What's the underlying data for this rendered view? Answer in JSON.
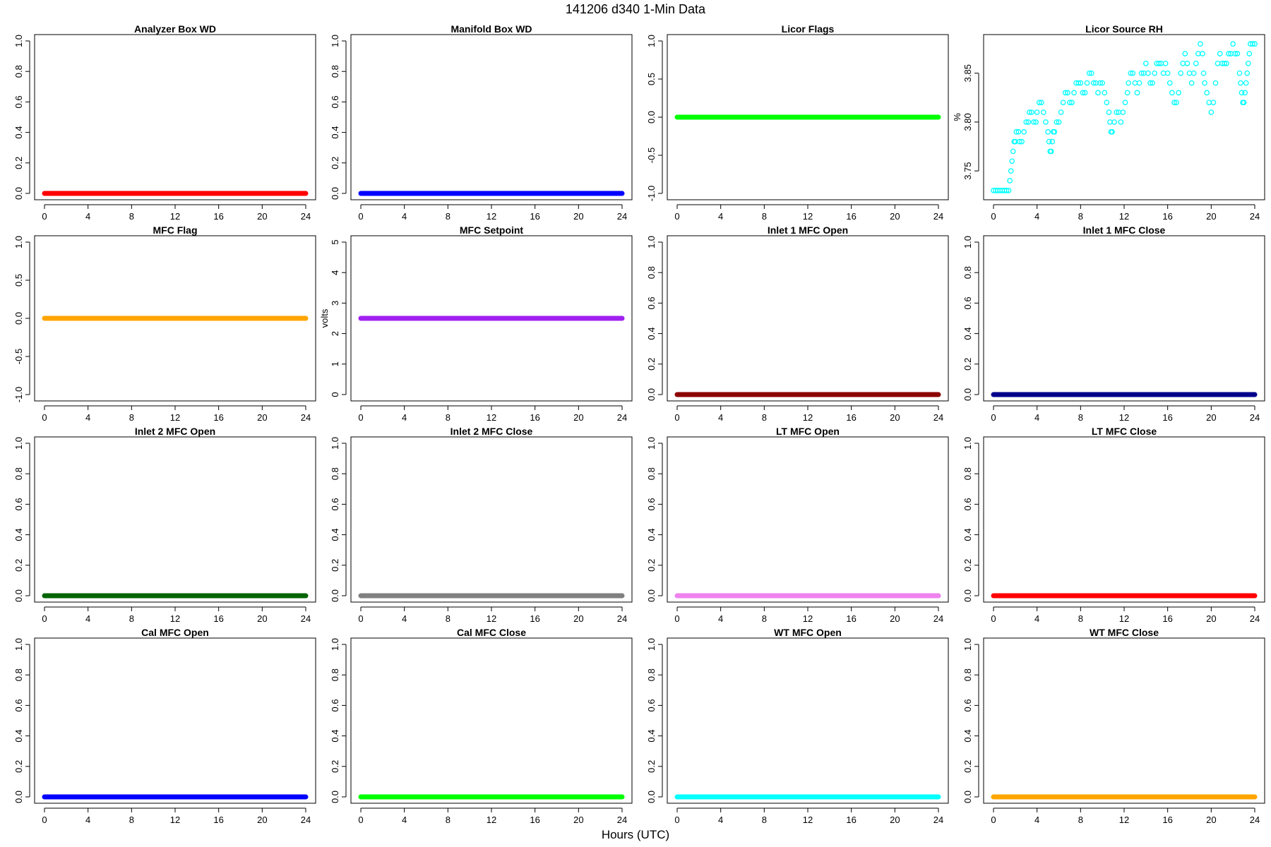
{
  "figure": {
    "title": "141206   d340   1-Min Data",
    "xlabel": "Hours (UTC)"
  },
  "chart_data": [
    {
      "type": "scatter",
      "title": "Analyzer Box WD",
      "ylabel": "",
      "color": "#ff0000",
      "xlim": [
        0,
        24
      ],
      "xticks": [
        0,
        4,
        8,
        12,
        16,
        20,
        24
      ],
      "ylim": [
        0,
        1
      ],
      "yticks": [
        "0.0",
        "0.2",
        "0.4",
        "0.6",
        "0.8",
        "1.0"
      ],
      "constant_value": 0,
      "x": [
        0,
        24
      ]
    },
    {
      "type": "scatter",
      "title": "Manifold Box WD",
      "ylabel": "",
      "color": "#0000ff",
      "xlim": [
        0,
        24
      ],
      "xticks": [
        0,
        4,
        8,
        12,
        16,
        20,
        24
      ],
      "ylim": [
        0,
        1
      ],
      "yticks": [
        "0.0",
        "0.2",
        "0.4",
        "0.6",
        "0.8",
        "1.0"
      ],
      "constant_value": 0,
      "x": [
        0,
        24
      ]
    },
    {
      "type": "scatter",
      "title": "Licor Flags",
      "ylabel": "",
      "color": "#00ff00",
      "xlim": [
        0,
        24
      ],
      "xticks": [
        0,
        4,
        8,
        12,
        16,
        20,
        24
      ],
      "ylim": [
        -1,
        1
      ],
      "yticks": [
        "-1.0",
        "-0.5",
        "0.0",
        "0.5",
        "1.0"
      ],
      "constant_value": 0,
      "x": [
        0,
        24
      ]
    },
    {
      "type": "scatter",
      "title": "Licor Source RH",
      "ylabel": "%",
      "color": "#00ffff",
      "xlim": [
        0,
        24
      ],
      "xticks": [
        0,
        4,
        8,
        12,
        16,
        20,
        24
      ],
      "ylim": [
        3.727,
        3.883
      ],
      "yticks": [
        "3.75",
        "3.80",
        "3.85"
      ],
      "hollow": true,
      "points": [
        [
          0.0,
          3.73
        ],
        [
          0.2,
          3.73
        ],
        [
          0.4,
          3.73
        ],
        [
          0.6,
          3.73
        ],
        [
          0.8,
          3.73
        ],
        [
          1.0,
          3.73
        ],
        [
          1.2,
          3.73
        ],
        [
          1.4,
          3.73
        ],
        [
          1.5,
          3.74
        ],
        [
          1.6,
          3.75
        ],
        [
          1.7,
          3.76
        ],
        [
          1.8,
          3.77
        ],
        [
          1.9,
          3.78
        ],
        [
          2.0,
          3.78
        ],
        [
          2.1,
          3.79
        ],
        [
          2.3,
          3.79
        ],
        [
          2.4,
          3.78
        ],
        [
          2.6,
          3.78
        ],
        [
          2.8,
          3.79
        ],
        [
          3.0,
          3.8
        ],
        [
          3.2,
          3.8
        ],
        [
          3.3,
          3.81
        ],
        [
          3.5,
          3.81
        ],
        [
          3.7,
          3.8
        ],
        [
          3.9,
          3.8
        ],
        [
          4.0,
          3.81
        ],
        [
          4.2,
          3.82
        ],
        [
          4.4,
          3.82
        ],
        [
          4.6,
          3.81
        ],
        [
          4.8,
          3.8
        ],
        [
          5.0,
          3.79
        ],
        [
          5.1,
          3.78
        ],
        [
          5.2,
          3.77
        ],
        [
          5.3,
          3.77
        ],
        [
          5.4,
          3.78
        ],
        [
          5.5,
          3.79
        ],
        [
          5.6,
          3.79
        ],
        [
          5.8,
          3.8
        ],
        [
          6.0,
          3.8
        ],
        [
          6.2,
          3.81
        ],
        [
          6.4,
          3.82
        ],
        [
          6.6,
          3.83
        ],
        [
          6.8,
          3.83
        ],
        [
          7.0,
          3.82
        ],
        [
          7.2,
          3.82
        ],
        [
          7.4,
          3.83
        ],
        [
          7.6,
          3.84
        ],
        [
          7.8,
          3.84
        ],
        [
          8.0,
          3.84
        ],
        [
          8.2,
          3.83
        ],
        [
          8.4,
          3.83
        ],
        [
          8.6,
          3.84
        ],
        [
          8.8,
          3.85
        ],
        [
          9.0,
          3.85
        ],
        [
          9.2,
          3.84
        ],
        [
          9.4,
          3.84
        ],
        [
          9.6,
          3.83
        ],
        [
          9.8,
          3.84
        ],
        [
          10.0,
          3.84
        ],
        [
          10.2,
          3.83
        ],
        [
          10.4,
          3.82
        ],
        [
          10.6,
          3.81
        ],
        [
          10.7,
          3.8
        ],
        [
          10.8,
          3.79
        ],
        [
          10.9,
          3.79
        ],
        [
          11.1,
          3.8
        ],
        [
          11.3,
          3.81
        ],
        [
          11.5,
          3.81
        ],
        [
          11.7,
          3.8
        ],
        [
          11.9,
          3.81
        ],
        [
          12.1,
          3.82
        ],
        [
          12.3,
          3.83
        ],
        [
          12.4,
          3.84
        ],
        [
          12.6,
          3.85
        ],
        [
          12.8,
          3.85
        ],
        [
          13.0,
          3.84
        ],
        [
          13.2,
          3.83
        ],
        [
          13.4,
          3.84
        ],
        [
          13.6,
          3.85
        ],
        [
          13.8,
          3.85
        ],
        [
          14.0,
          3.86
        ],
        [
          14.2,
          3.85
        ],
        [
          14.4,
          3.84
        ],
        [
          14.6,
          3.84
        ],
        [
          14.8,
          3.85
        ],
        [
          15.0,
          3.86
        ],
        [
          15.2,
          3.86
        ],
        [
          15.4,
          3.86
        ],
        [
          15.6,
          3.85
        ],
        [
          15.8,
          3.86
        ],
        [
          16.0,
          3.85
        ],
        [
          16.2,
          3.84
        ],
        [
          16.4,
          3.83
        ],
        [
          16.6,
          3.82
        ],
        [
          16.8,
          3.82
        ],
        [
          17.0,
          3.83
        ],
        [
          17.2,
          3.85
        ],
        [
          17.4,
          3.86
        ],
        [
          17.6,
          3.87
        ],
        [
          17.8,
          3.86
        ],
        [
          18.0,
          3.85
        ],
        [
          18.2,
          3.84
        ],
        [
          18.4,
          3.85
        ],
        [
          18.6,
          3.86
        ],
        [
          18.8,
          3.87
        ],
        [
          19.0,
          3.88
        ],
        [
          19.2,
          3.87
        ],
        [
          19.3,
          3.85
        ],
        [
          19.4,
          3.84
        ],
        [
          19.6,
          3.83
        ],
        [
          19.8,
          3.82
        ],
        [
          20.0,
          3.81
        ],
        [
          20.2,
          3.82
        ],
        [
          20.4,
          3.84
        ],
        [
          20.6,
          3.86
        ],
        [
          20.8,
          3.87
        ],
        [
          21.0,
          3.86
        ],
        [
          21.2,
          3.86
        ],
        [
          21.4,
          3.86
        ],
        [
          21.6,
          3.87
        ],
        [
          21.8,
          3.87
        ],
        [
          22.0,
          3.88
        ],
        [
          22.2,
          3.87
        ],
        [
          22.4,
          3.87
        ],
        [
          22.6,
          3.85
        ],
        [
          22.7,
          3.84
        ],
        [
          22.8,
          3.83
        ],
        [
          22.9,
          3.82
        ],
        [
          23.0,
          3.82
        ],
        [
          23.1,
          3.83
        ],
        [
          23.2,
          3.84
        ],
        [
          23.3,
          3.85
        ],
        [
          23.4,
          3.86
        ],
        [
          23.5,
          3.87
        ],
        [
          23.6,
          3.88
        ],
        [
          23.8,
          3.88
        ],
        [
          24.0,
          3.88
        ]
      ]
    },
    {
      "type": "scatter",
      "title": "MFC Flag",
      "ylabel": "",
      "color": "#ffa500",
      "xlim": [
        0,
        24
      ],
      "xticks": [
        0,
        4,
        8,
        12,
        16,
        20,
        24
      ],
      "ylim": [
        -1,
        1
      ],
      "yticks": [
        "-1.0",
        "-0.5",
        "0.0",
        "0.5",
        "1.0"
      ],
      "constant_value": 0,
      "x": [
        0,
        24
      ]
    },
    {
      "type": "scatter",
      "title": "MFC Setpoint",
      "ylabel": "volts",
      "color": "#a020f0",
      "xlim": [
        0,
        24
      ],
      "xticks": [
        0,
        4,
        8,
        12,
        16,
        20,
        24
      ],
      "ylim": [
        0,
        5
      ],
      "yticks": [
        "0",
        "1",
        "2",
        "3",
        "4",
        "5"
      ],
      "constant_value": 2.5,
      "x": [
        0,
        24
      ]
    },
    {
      "type": "scatter",
      "title": "Inlet 1 MFC Open",
      "ylabel": "",
      "color": "#8b0000",
      "xlim": [
        0,
        24
      ],
      "xticks": [
        0,
        4,
        8,
        12,
        16,
        20,
        24
      ],
      "ylim": [
        0,
        1
      ],
      "yticks": [
        "0.0",
        "0.2",
        "0.4",
        "0.6",
        "0.8",
        "1.0"
      ],
      "constant_value": 0,
      "x": [
        0,
        24
      ]
    },
    {
      "type": "scatter",
      "title": "Inlet 1 MFC Close",
      "ylabel": "",
      "color": "#00008b",
      "xlim": [
        0,
        24
      ],
      "xticks": [
        0,
        4,
        8,
        12,
        16,
        20,
        24
      ],
      "ylim": [
        0,
        1
      ],
      "yticks": [
        "0.0",
        "0.2",
        "0.4",
        "0.6",
        "0.8",
        "1.0"
      ],
      "constant_value": 0,
      "x": [
        0,
        24
      ]
    },
    {
      "type": "scatter",
      "title": "Inlet 2 MFC Open",
      "ylabel": "",
      "color": "#006400",
      "xlim": [
        0,
        24
      ],
      "xticks": [
        0,
        4,
        8,
        12,
        16,
        20,
        24
      ],
      "ylim": [
        0,
        1
      ],
      "yticks": [
        "0.0",
        "0.2",
        "0.4",
        "0.6",
        "0.8",
        "1.0"
      ],
      "constant_value": 0,
      "x": [
        0,
        24
      ]
    },
    {
      "type": "scatter",
      "title": "Inlet 2 MFC Close",
      "ylabel": "",
      "color": "#808080",
      "xlim": [
        0,
        24
      ],
      "xticks": [
        0,
        4,
        8,
        12,
        16,
        20,
        24
      ],
      "ylim": [
        0,
        1
      ],
      "yticks": [
        "0.0",
        "0.2",
        "0.4",
        "0.6",
        "0.8",
        "1.0"
      ],
      "constant_value": 0,
      "x": [
        0,
        24
      ]
    },
    {
      "type": "scatter",
      "title": "LT MFC Open",
      "ylabel": "",
      "color": "#ee82ee",
      "xlim": [
        0,
        24
      ],
      "xticks": [
        0,
        4,
        8,
        12,
        16,
        20,
        24
      ],
      "ylim": [
        0,
        1
      ],
      "yticks": [
        "0.0",
        "0.2",
        "0.4",
        "0.6",
        "0.8",
        "1.0"
      ],
      "constant_value": 0,
      "x": [
        0,
        24
      ]
    },
    {
      "type": "scatter",
      "title": "LT MFC Close",
      "ylabel": "",
      "color": "#ff0000",
      "xlim": [
        0,
        24
      ],
      "xticks": [
        0,
        4,
        8,
        12,
        16,
        20,
        24
      ],
      "ylim": [
        0,
        1
      ],
      "yticks": [
        "0.0",
        "0.2",
        "0.4",
        "0.6",
        "0.8",
        "1.0"
      ],
      "constant_value": 0,
      "x": [
        0,
        24
      ]
    },
    {
      "type": "scatter",
      "title": "Cal MFC Open",
      "ylabel": "",
      "color": "#0000ff",
      "xlim": [
        0,
        24
      ],
      "xticks": [
        0,
        4,
        8,
        12,
        16,
        20,
        24
      ],
      "ylim": [
        0,
        1
      ],
      "yticks": [
        "0.0",
        "0.2",
        "0.4",
        "0.6",
        "0.8",
        "1.0"
      ],
      "constant_value": 0,
      "x": [
        0,
        24
      ]
    },
    {
      "type": "scatter",
      "title": "Cal MFC Close",
      "ylabel": "",
      "color": "#00ff00",
      "xlim": [
        0,
        24
      ],
      "xticks": [
        0,
        4,
        8,
        12,
        16,
        20,
        24
      ],
      "ylim": [
        0,
        1
      ],
      "yticks": [
        "0.0",
        "0.2",
        "0.4",
        "0.6",
        "0.8",
        "1.0"
      ],
      "constant_value": 0,
      "x": [
        0,
        24
      ]
    },
    {
      "type": "scatter",
      "title": "WT MFC Open",
      "ylabel": "",
      "color": "#00ffff",
      "xlim": [
        0,
        24
      ],
      "xticks": [
        0,
        4,
        8,
        12,
        16,
        20,
        24
      ],
      "ylim": [
        0,
        1
      ],
      "yticks": [
        "0.0",
        "0.2",
        "0.4",
        "0.6",
        "0.8",
        "1.0"
      ],
      "constant_value": 0,
      "x": [
        0,
        24
      ]
    },
    {
      "type": "scatter",
      "title": "WT MFC Close",
      "ylabel": "",
      "color": "#ffa500",
      "xlim": [
        0,
        24
      ],
      "xticks": [
        0,
        4,
        8,
        12,
        16,
        20,
        24
      ],
      "ylim": [
        0,
        1
      ],
      "yticks": [
        "0.0",
        "0.2",
        "0.4",
        "0.6",
        "0.8",
        "1.0"
      ],
      "constant_value": 0,
      "x": [
        0,
        24
      ]
    }
  ]
}
